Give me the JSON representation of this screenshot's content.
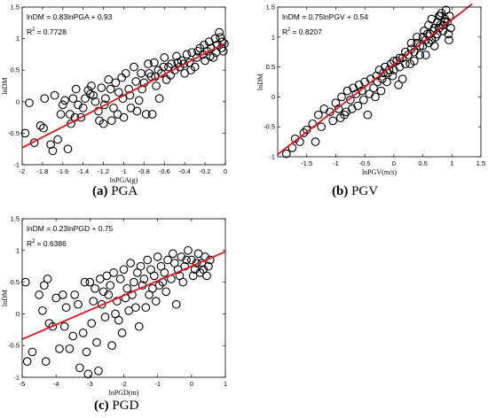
{
  "colors": {
    "fit_line": "#e8141c",
    "markers": "#000000",
    "axes": "#000000",
    "background": "#ffffff"
  },
  "chart_data": [
    {
      "type": "scatter",
      "id": "a",
      "caption_tag": "(a)",
      "caption_text": "PGA",
      "xlabel": "lnPGA(g)",
      "ylabel": "lnDM",
      "equation": "lnDM = 0.83lnPGA + 0.93",
      "r2_label": "R",
      "r2_exp": "2",
      "r2_value": "= 0.7728",
      "xlim": [
        -2,
        0
      ],
      "ylim": [
        -1,
        1.5
      ],
      "xticks": [
        -2,
        -1.8,
        -1.6,
        -1.4,
        -1.2,
        -1,
        -0.8,
        -0.6,
        -0.4,
        -0.2,
        0
      ],
      "xtick_labels": [
        "-2",
        "-1.8",
        "-1.6",
        "-1.4",
        "-1.2",
        "-1",
        "-0.8",
        "-0.6",
        "-0.4",
        "-0.2",
        "0"
      ],
      "yticks": [
        -1,
        -0.5,
        0,
        0.5,
        1,
        1.5
      ],
      "ytick_labels": [
        "-1",
        "-0.5",
        "0",
        "0.5",
        "1",
        "1.5"
      ],
      "fit": {
        "slope": 0.83,
        "intercept": 0.93,
        "x_range": [
          -2,
          0
        ]
      },
      "points": [
        [
          -1.97,
          -0.5
        ],
        [
          -1.93,
          -0.02
        ],
        [
          -1.88,
          -0.65
        ],
        [
          -1.82,
          -0.38
        ],
        [
          -1.79,
          -0.42
        ],
        [
          -1.78,
          0.05
        ],
        [
          -1.72,
          -0.68
        ],
        [
          -1.7,
          -0.78
        ],
        [
          -1.68,
          0.1
        ],
        [
          -1.65,
          -0.6
        ],
        [
          -1.62,
          -0.2
        ],
        [
          -1.6,
          -0.05
        ],
        [
          -1.58,
          0.02
        ],
        [
          -1.55,
          -0.75
        ],
        [
          -1.52,
          -0.35
        ],
        [
          -1.5,
          0.05
        ],
        [
          -1.48,
          -0.25
        ],
        [
          -1.45,
          -0.05
        ],
        [
          -1.42,
          -0.25
        ],
        [
          -1.38,
          0.05
        ],
        [
          -1.35,
          0.18
        ],
        [
          -1.32,
          0.25
        ],
        [
          -1.3,
          0.1
        ],
        [
          -1.28,
          0.0
        ],
        [
          -1.25,
          -0.15
        ],
        [
          -1.22,
          0.22
        ],
        [
          -1.2,
          -0.35
        ],
        [
          -1.18,
          0.05
        ],
        [
          -1.15,
          0.35
        ],
        [
          -1.12,
          -0.3
        ],
        [
          -1.1,
          -0.1
        ],
        [
          -1.08,
          0.3
        ],
        [
          -1.05,
          0.15
        ],
        [
          -1.02,
          0.38
        ],
        [
          -1,
          -0.25
        ],
        [
          -0.98,
          0.45
        ],
        [
          -0.95,
          0.2
        ],
        [
          -0.93,
          -0.1
        ],
        [
          -0.9,
          0.55
        ],
        [
          -0.88,
          0.32
        ],
        [
          -0.85,
          0.02
        ],
        [
          -0.83,
          0.45
        ],
        [
          -0.8,
          0.3
        ],
        [
          -0.78,
          -0.2
        ],
        [
          -0.76,
          0.6
        ],
        [
          -0.73,
          0.4
        ],
        [
          -0.7,
          0.62
        ],
        [
          -0.68,
          0.25
        ],
        [
          -0.66,
          0.5
        ],
        [
          -0.63,
          0.45
        ],
        [
          -0.6,
          0.7
        ],
        [
          -0.58,
          0.35
        ],
        [
          -0.56,
          0.55
        ],
        [
          -0.53,
          0.6
        ],
        [
          -0.5,
          0.5
        ],
        [
          -0.48,
          0.72
        ],
        [
          -0.45,
          0.55
        ],
        [
          -0.43,
          0.65
        ],
        [
          -0.4,
          0.45
        ],
        [
          -0.38,
          0.75
        ],
        [
          -0.35,
          0.62
        ],
        [
          -0.33,
          0.78
        ],
        [
          -0.3,
          0.55
        ],
        [
          -0.28,
          0.7
        ],
        [
          -0.25,
          0.85
        ],
        [
          -0.22,
          0.75
        ],
        [
          -0.2,
          0.65
        ],
        [
          -0.18,
          0.8
        ],
        [
          -0.16,
          0.95
        ],
        [
          -0.14,
          0.85
        ],
        [
          -0.12,
          0.7
        ],
        [
          -0.1,
          1.0
        ],
        [
          -0.08,
          0.9
        ],
        [
          -0.06,
          1.1
        ],
        [
          -0.04,
          0.85
        ],
        [
          -0.03,
          0.95
        ],
        [
          -0.02,
          0.8
        ],
        [
          -0.01,
          0.92
        ],
        [
          -0.05,
          1.02
        ],
        [
          -0.09,
          0.78
        ],
        [
          -0.15,
          0.72
        ],
        [
          -0.21,
          0.9
        ],
        [
          -0.27,
          0.8
        ],
        [
          -0.34,
          0.5
        ],
        [
          -0.41,
          0.6
        ],
        [
          -0.47,
          0.62
        ],
        [
          -0.54,
          0.42
        ],
        [
          -0.61,
          0.55
        ],
        [
          -0.69,
          0.4
        ],
        [
          -0.75,
          0.45
        ],
        [
          -0.82,
          0.2
        ],
        [
          -0.87,
          -0.15
        ],
        [
          -0.94,
          0.1
        ],
        [
          -1.01,
          0.05
        ],
        [
          -1.06,
          -0.2
        ],
        [
          -1.13,
          0.2
        ],
        [
          -1.19,
          -0.05
        ],
        [
          -1.24,
          -0.3
        ],
        [
          -1.33,
          0.12
        ],
        [
          -1.4,
          -0.1
        ],
        [
          -1.47,
          0.2
        ],
        [
          -1.53,
          -0.2
        ],
        [
          -0.65,
          0.05
        ],
        [
          -0.72,
          -0.2
        ]
      ]
    },
    {
      "type": "scatter",
      "id": "b",
      "caption_tag": "(b)",
      "caption_text": "PGV",
      "xlabel": "lnPGV(m/s)",
      "ylabel": "lnDM",
      "equation": "lnDM = 0.75lnPGV + 0.54",
      "r2_label": "R",
      "r2_exp": "2",
      "r2_value": "= 0.8207",
      "xlim": [
        -2,
        1.5
      ],
      "ylim": [
        -1,
        1.5
      ],
      "xticks": [
        -1.5,
        -1,
        -0.5,
        0,
        0.5,
        1,
        1.5
      ],
      "xtick_labels": [
        "-1.5",
        "-1",
        "-0.5",
        "0",
        "0.5",
        "1",
        "1.5"
      ],
      "yticks": [
        -1,
        -0.5,
        0,
        0.5,
        1,
        1.5
      ],
      "ytick_labels": [
        "-1",
        "-0.5",
        "0",
        "0.5",
        "1",
        "1.5"
      ],
      "fit": {
        "slope": 0.75,
        "intercept": 0.54,
        "x_range": [
          -2,
          1.35
        ]
      },
      "points": [
        [
          -1.85,
          -0.95
        ],
        [
          -1.75,
          -0.85
        ],
        [
          -1.7,
          -0.7
        ],
        [
          -1.62,
          -0.75
        ],
        [
          -1.55,
          -0.6
        ],
        [
          -1.5,
          -0.55
        ],
        [
          -1.4,
          -0.45
        ],
        [
          -1.35,
          -0.75
        ],
        [
          -1.3,
          -0.3
        ],
        [
          -1.25,
          -0.5
        ],
        [
          -1.2,
          -0.2
        ],
        [
          -1.1,
          -0.25
        ],
        [
          -1.05,
          -0.4
        ],
        [
          -1.0,
          -0.1
        ],
        [
          -0.95,
          -0.2
        ],
        [
          -0.9,
          0.0
        ],
        [
          -0.85,
          -0.3
        ],
        [
          -0.8,
          0.1
        ],
        [
          -0.75,
          -0.05
        ],
        [
          -0.7,
          0.15
        ],
        [
          -0.65,
          0.05
        ],
        [
          -0.6,
          0.2
        ],
        [
          -0.55,
          0.1
        ],
        [
          -0.5,
          0.25
        ],
        [
          -0.45,
          -0.3
        ],
        [
          -0.4,
          0.3
        ],
        [
          -0.35,
          0.15
        ],
        [
          -0.3,
          0.35
        ],
        [
          -0.25,
          0.45
        ],
        [
          -0.2,
          0.3
        ],
        [
          -0.15,
          0.5
        ],
        [
          -0.1,
          0.4
        ],
        [
          -0.05,
          0.55
        ],
        [
          0.0,
          0.45
        ],
        [
          0.05,
          0.6
        ],
        [
          0.1,
          0.5
        ],
        [
          0.15,
          0.65
        ],
        [
          0.2,
          0.55
        ],
        [
          0.25,
          0.7
        ],
        [
          0.3,
          0.8
        ],
        [
          0.35,
          0.75
        ],
        [
          0.4,
          0.9
        ],
        [
          0.45,
          0.85
        ],
        [
          0.5,
          1.0
        ],
        [
          0.52,
          1.1
        ],
        [
          0.55,
          0.95
        ],
        [
          0.6,
          1.2
        ],
        [
          0.62,
          1.05
        ],
        [
          0.65,
          1.3
        ],
        [
          0.7,
          1.15
        ],
        [
          0.72,
          1.0
        ],
        [
          0.75,
          1.25
        ],
        [
          0.78,
          1.35
        ],
        [
          0.8,
          1.2
        ],
        [
          0.82,
          1.4
        ],
        [
          0.85,
          1.1
        ],
        [
          0.88,
          1.3
        ],
        [
          0.9,
          1.45
        ],
        [
          0.92,
          1.25
        ],
        [
          0.94,
          1.05
        ],
        [
          0.96,
          1.35
        ],
        [
          0.98,
          1.15
        ],
        [
          0.7,
          0.85
        ],
        [
          0.6,
          0.9
        ],
        [
          0.45,
          0.7
        ],
        [
          0.35,
          0.6
        ],
        [
          0.28,
          0.55
        ],
        [
          0.15,
          0.3
        ],
        [
          0.08,
          0.2
        ],
        [
          -0.02,
          0.35
        ],
        [
          -0.12,
          0.25
        ],
        [
          -0.22,
          0.1
        ],
        [
          -0.32,
          0.0
        ],
        [
          -0.42,
          0.05
        ],
        [
          -0.52,
          -0.05
        ],
        [
          -0.62,
          -0.15
        ],
        [
          -0.72,
          -0.2
        ],
        [
          -0.82,
          -0.25
        ],
        [
          -0.92,
          -0.35
        ],
        [
          0.55,
          0.7
        ],
        [
          0.65,
          0.95
        ],
        [
          0.75,
          1.05
        ],
        [
          0.85,
          1.2
        ],
        [
          0.95,
          0.95
        ],
        [
          0.4,
          1.0
        ],
        [
          0.3,
          0.9
        ],
        [
          0.2,
          0.75
        ],
        [
          0.1,
          0.65
        ],
        [
          0.0,
          0.6
        ],
        [
          -0.08,
          0.45
        ],
        [
          -0.18,
          0.4
        ],
        [
          -0.28,
          0.25
        ],
        [
          0.5,
          0.85
        ],
        [
          0.58,
          1.05
        ],
        [
          0.68,
          1.1
        ],
        [
          0.78,
          1.15
        ],
        [
          0.88,
          1.25
        ],
        [
          0.8,
          1.35
        ]
      ]
    },
    {
      "type": "scatter",
      "id": "c",
      "caption_tag": "(c)",
      "caption_text": "PGD",
      "xlabel": "lnPGD(m)",
      "ylabel": "lnDM",
      "equation": "lnDM = 0.23lnPGD + 0.75",
      "r2_label": "R",
      "r2_exp": "2",
      "r2_value": "= 0.6386",
      "xlim": [
        -5,
        1
      ],
      "ylim": [
        -1,
        1.5
      ],
      "xticks": [
        -5,
        -4,
        -3,
        -2,
        -1,
        0,
        1
      ],
      "xtick_labels": [
        "-5",
        "-4",
        "-3",
        "-2",
        "-1",
        "0",
        "1"
      ],
      "yticks": [
        -1,
        -0.5,
        0,
        0.5,
        1,
        1.5
      ],
      "ytick_labels": [
        "-1",
        "-0.5",
        "0",
        "0.5",
        "1",
        "1.5"
      ],
      "fit": {
        "slope": 0.23,
        "intercept": 0.75,
        "x_range": [
          -5,
          1
        ]
      },
      "points": [
        [
          -4.9,
          0.5
        ],
        [
          -4.85,
          -0.75
        ],
        [
          -4.7,
          -0.6
        ],
        [
          -4.5,
          0.3
        ],
        [
          -4.4,
          0.05
        ],
        [
          -4.35,
          0.45
        ],
        [
          -4.3,
          -0.75
        ],
        [
          -4.25,
          0.55
        ],
        [
          -4.2,
          -0.15
        ],
        [
          -4.0,
          0.25
        ],
        [
          -3.9,
          -0.55
        ],
        [
          -3.75,
          -0.2
        ],
        [
          -3.7,
          0.1
        ],
        [
          -3.6,
          -0.55
        ],
        [
          -3.5,
          -0.35
        ],
        [
          -3.45,
          0.3
        ],
        [
          -3.3,
          -0.85
        ],
        [
          -3.2,
          -0.3
        ],
        [
          -3.1,
          -0.6
        ],
        [
          -3.05,
          -0.95
        ],
        [
          -3.0,
          0.5
        ],
        [
          -2.95,
          -0.15
        ],
        [
          -2.9,
          0.2
        ],
        [
          -2.8,
          -0.45
        ],
        [
          -2.75,
          -0.9
        ],
        [
          -2.7,
          0.55
        ],
        [
          -2.6,
          0.35
        ],
        [
          -2.55,
          -0.05
        ],
        [
          -2.5,
          0.6
        ],
        [
          -2.4,
          0.45
        ],
        [
          -2.35,
          -0.5
        ],
        [
          -2.3,
          0.65
        ],
        [
          -2.2,
          0.2
        ],
        [
          -2.1,
          0.55
        ],
        [
          -2.05,
          -0.3
        ],
        [
          -2.0,
          0.7
        ],
        [
          -1.9,
          0.4
        ],
        [
          -1.85,
          0.05
        ],
        [
          -1.8,
          0.8
        ],
        [
          -1.7,
          0.5
        ],
        [
          -1.6,
          0.65
        ],
        [
          -1.55,
          -0.2
        ],
        [
          -1.5,
          0.75
        ],
        [
          -1.4,
          0.55
        ],
        [
          -1.3,
          0.85
        ],
        [
          -1.25,
          0.3
        ],
        [
          -1.2,
          0.7
        ],
        [
          -1.1,
          0.6
        ],
        [
          -1.0,
          0.9
        ],
        [
          -0.95,
          0.45
        ],
        [
          -0.9,
          0.75
        ],
        [
          -0.8,
          0.65
        ],
        [
          -0.7,
          0.85
        ],
        [
          -0.6,
          0.55
        ],
        [
          -0.5,
          0.8
        ],
        [
          -0.4,
          0.7
        ],
        [
          -0.3,
          0.9
        ],
        [
          -0.2,
          0.75
        ],
        [
          -0.1,
          1.0
        ],
        [
          0.0,
          0.85
        ],
        [
          0.1,
          0.7
        ],
        [
          0.2,
          0.95
        ],
        [
          0.3,
          0.8
        ],
        [
          0.4,
          0.9
        ],
        [
          0.5,
          0.75
        ],
        [
          0.55,
          0.85
        ],
        [
          -1.35,
          0.1
        ],
        [
          -1.75,
          0.3
        ],
        [
          -2.25,
          0.0
        ],
        [
          -2.65,
          0.15
        ],
        [
          -2.85,
          0.4
        ],
        [
          -3.15,
          0.5
        ],
        [
          -3.35,
          0.15
        ],
        [
          -3.8,
          0.3
        ],
        [
          -4.1,
          -0.2
        ],
        [
          -1.05,
          0.2
        ],
        [
          -0.75,
          0.35
        ],
        [
          -0.45,
          0.15
        ],
        [
          -0.25,
          0.5
        ],
        [
          0.05,
          0.6
        ],
        [
          0.25,
          0.65
        ],
        [
          0.45,
          0.6
        ],
        [
          -0.55,
          0.95
        ],
        [
          -0.15,
          0.85
        ],
        [
          0.15,
          0.8
        ],
        [
          0.35,
          0.7
        ],
        [
          -0.85,
          0.5
        ],
        [
          -1.15,
          0.4
        ],
        [
          -1.45,
          0.45
        ],
        [
          -1.65,
          0.1
        ],
        [
          -1.95,
          0.25
        ],
        [
          -2.15,
          -0.1
        ],
        [
          -2.45,
          0.3
        ],
        [
          -0.35,
          0.6
        ]
      ]
    }
  ]
}
